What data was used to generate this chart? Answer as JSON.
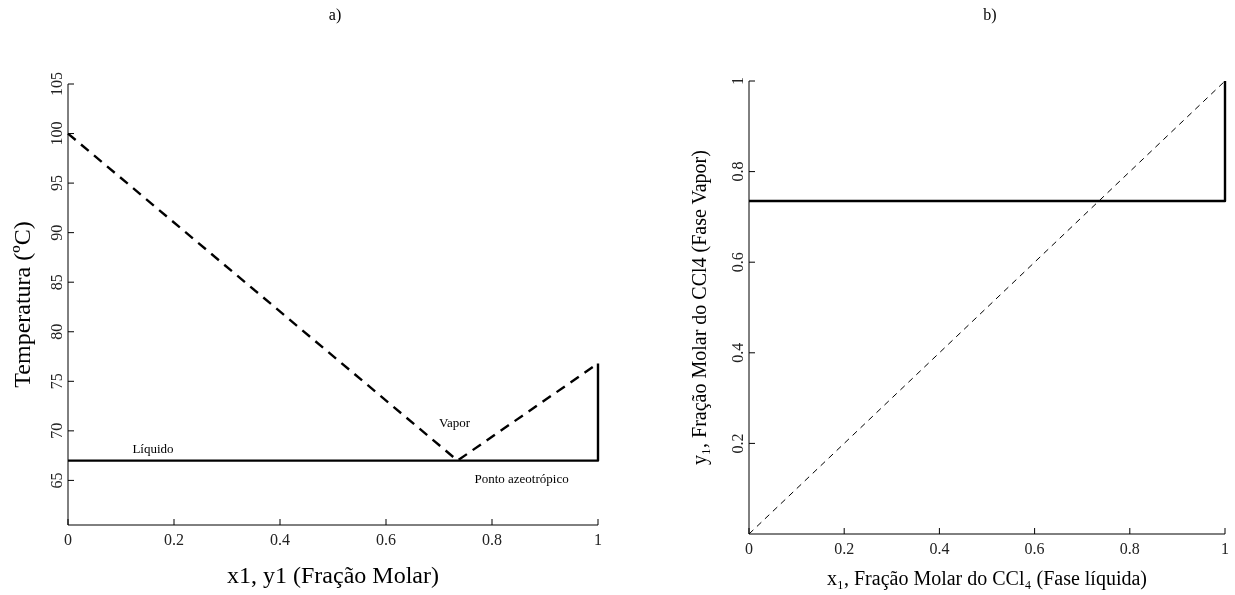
{
  "chart_data": [
    {
      "type": "line",
      "title": "a)",
      "xlabel": "x1, y1 (Fração Molar)",
      "ylabel": "Temperatura  (ºC)",
      "xlim": [
        0,
        1
      ],
      "ylim": [
        60.5,
        105
      ],
      "xticks": [
        0,
        0.2,
        0.4,
        0.6,
        0.8,
        1
      ],
      "yticks": [
        65,
        70,
        75,
        80,
        85,
        90,
        95,
        100,
        105
      ],
      "grid": false,
      "series": [
        {
          "name": "Líquido",
          "color": "#000000",
          "line_style": "solid",
          "x": [
            0,
            1,
            1
          ],
          "values": [
            67,
            67,
            76.8
          ]
        },
        {
          "name": "Vapor",
          "color": "#000000",
          "line_style": "dashed",
          "x": [
            0,
            0.735,
            1
          ],
          "values": [
            100,
            67,
            76.8
          ]
        }
      ],
      "annotations": [
        {
          "text": "Ponto azeotrópico",
          "x": 0.735,
          "y": 67
        }
      ]
    },
    {
      "type": "line",
      "title": "b)",
      "xlabel": "x₁, Fração Molar do CCl₄ (Fase líquida)",
      "ylabel": "y₁, Fração Molar do CCl4 (Fase Vapor)",
      "xlim": [
        0,
        1
      ],
      "ylim": [
        0,
        1
      ],
      "xticks": [
        0,
        0.2,
        0.4,
        0.6,
        0.8,
        1
      ],
      "yticks": [
        0.2,
        0.4,
        0.6,
        0.8,
        1
      ],
      "grid": false,
      "series": [
        {
          "color": "#000000",
          "line_style": "solid",
          "x": [
            0,
            1,
            1
          ],
          "values": [
            0.735,
            0.735,
            1
          ]
        },
        {
          "color": "#000000",
          "line_style": "dashed",
          "x": [
            0,
            1
          ],
          "values": [
            0,
            1
          ]
        }
      ]
    }
  ]
}
